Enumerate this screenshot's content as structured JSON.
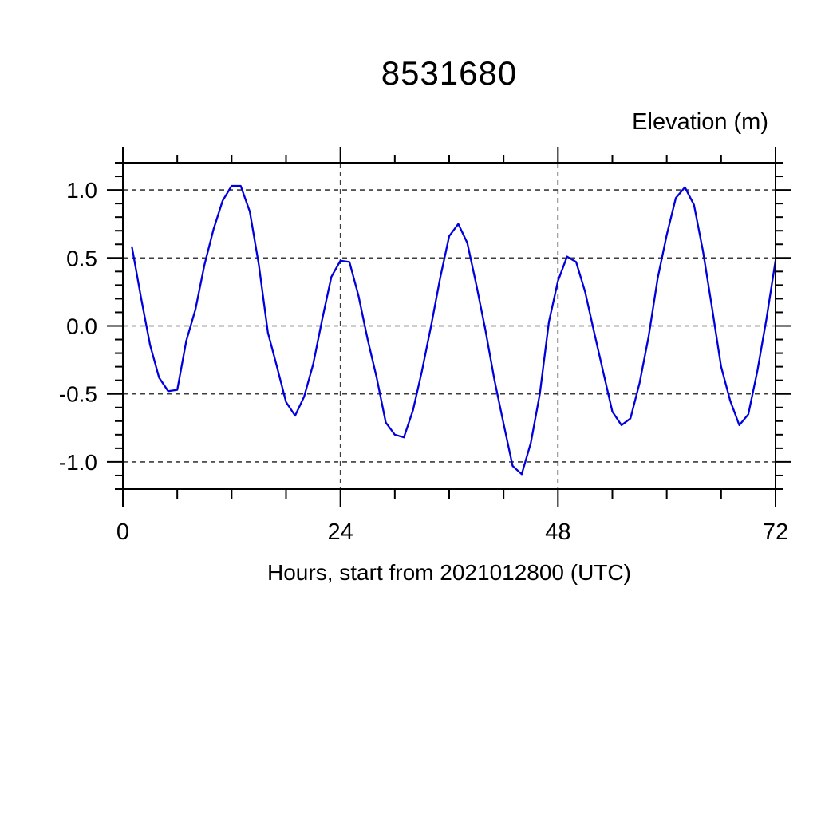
{
  "page": {
    "background": "#ffffff"
  },
  "header": {
    "title": "8531680"
  },
  "chart_data": {
    "type": "line",
    "title": "8531680",
    "y_axis_top_label": "Elevation (m)",
    "xlabel": "Hours, start from 2021012800 (UTC)",
    "xlim": [
      0,
      72
    ],
    "ylim": [
      -1.2,
      1.2
    ],
    "x_major_ticks": [
      0,
      24,
      48,
      72
    ],
    "x_tick_labels": [
      "0",
      "24",
      "48",
      "72"
    ],
    "x_minor_spacing": 6,
    "y_major_ticks": [
      -1.0,
      -0.5,
      0.0,
      0.5,
      1.0
    ],
    "y_tick_labels": [
      "-1.0",
      "-0.5",
      "0.0",
      "0.5",
      "1.0"
    ],
    "y_minor_spacing": 0.1,
    "grid": {
      "style": "dashed",
      "color": "#3d3d3d",
      "on_major_ticks": true
    },
    "axis_color": "#000000",
    "x": [
      1,
      2,
      3,
      4,
      5,
      6,
      7,
      8,
      9,
      10,
      11,
      12,
      13,
      14,
      15,
      16,
      17,
      18,
      19,
      20,
      21,
      22,
      23,
      24,
      25,
      26,
      27,
      28,
      29,
      30,
      31,
      32,
      33,
      34,
      35,
      36,
      37,
      38,
      39,
      40,
      41,
      42,
      43,
      44,
      45,
      46,
      47,
      48,
      49,
      50,
      51,
      52,
      53,
      54,
      55,
      56,
      57,
      58,
      59,
      60,
      61,
      62,
      63,
      64,
      65,
      66,
      67,
      68,
      69,
      70,
      71,
      72
    ],
    "series": [
      {
        "name": "elevation",
        "color": "#0000dd",
        "values": [
          0.58,
          0.21,
          -0.14,
          -0.38,
          -0.48,
          -0.47,
          -0.11,
          0.12,
          0.45,
          0.71,
          0.92,
          1.03,
          1.03,
          0.84,
          0.45,
          -0.05,
          -0.3,
          -0.56,
          -0.66,
          -0.52,
          -0.28,
          0.05,
          0.36,
          0.48,
          0.47,
          0.22,
          -0.1,
          -0.38,
          -0.71,
          -0.8,
          -0.82,
          -0.62,
          -0.33,
          0.0,
          0.35,
          0.66,
          0.75,
          0.61,
          0.3,
          -0.03,
          -0.4,
          -0.72,
          -1.03,
          -1.09,
          -0.86,
          -0.5,
          0.03,
          0.33,
          0.51,
          0.47,
          0.25,
          -0.05,
          -0.34,
          -0.63,
          -0.73,
          -0.68,
          -0.42,
          -0.08,
          0.35,
          0.67,
          0.94,
          1.02,
          0.89,
          0.55,
          0.13,
          -0.3,
          -0.55,
          -0.73,
          -0.65,
          -0.33,
          0.05,
          0.48
        ]
      }
    ]
  }
}
